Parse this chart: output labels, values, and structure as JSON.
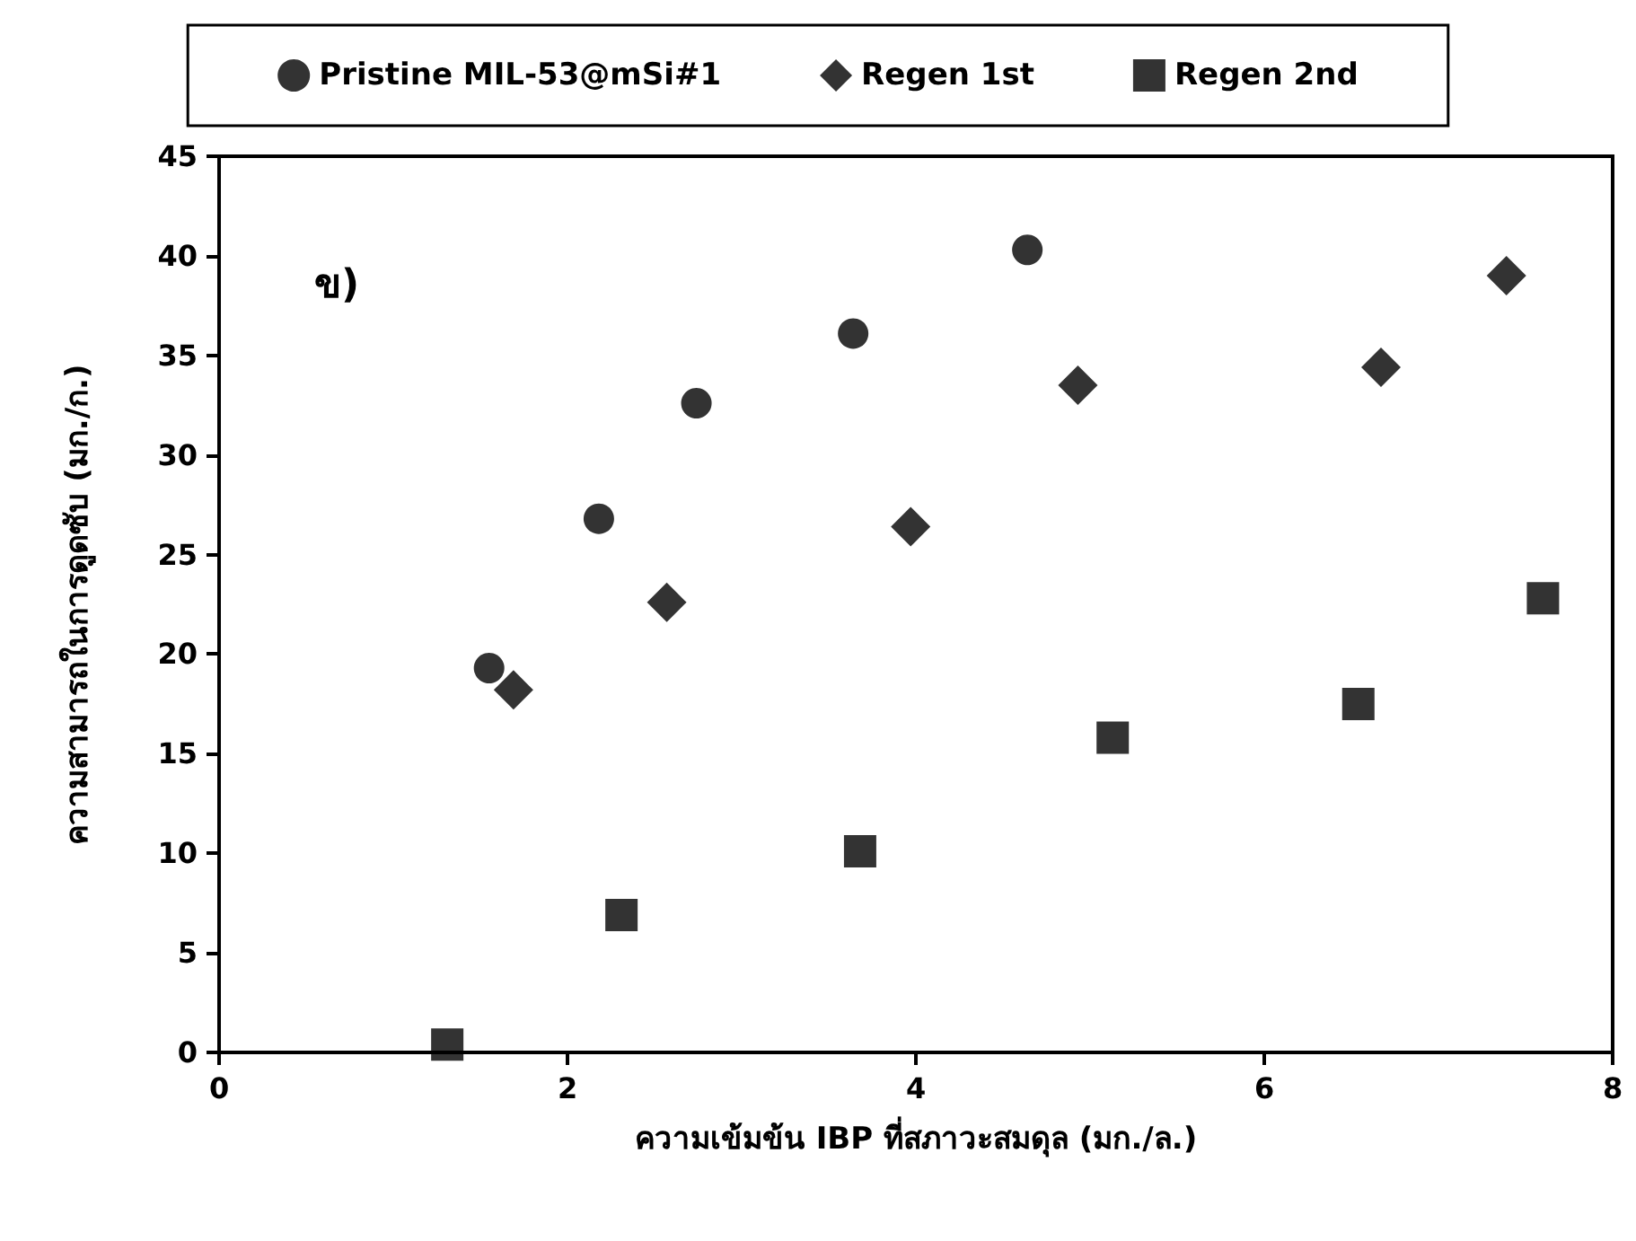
{
  "chart_data": {
    "type": "scatter",
    "xlabel": "ความเข้มข้น IBP ที่สภาวะสมดุล (มก./ล.)",
    "ylabel": "ความสามารถในการดูดซับ (มก./ก.)",
    "annotations": [
      "ข)"
    ],
    "xlim": [
      0,
      8
    ],
    "xticks": [
      0,
      2,
      4,
      6,
      8
    ],
    "ylim": [
      0,
      45
    ],
    "yticks": [
      0,
      5,
      10,
      15,
      20,
      25,
      30,
      35,
      40,
      45
    ],
    "grid": false,
    "legend": "top",
    "series": [
      {
        "name": "Pristine MIL-53@mSi#1",
        "color": "#000000",
        "marker": "circle",
        "x": [
          1.55,
          2.18,
          2.74,
          3.64,
          4.64
        ],
        "values": [
          19.3,
          26.8,
          32.6,
          36.1,
          40.3
        ]
      },
      {
        "name": "Regen 1st",
        "color": "#000000",
        "marker": "diamond",
        "x": [
          1.69,
          2.57,
          3.97,
          4.93,
          6.67,
          7.39
        ],
        "values": [
          18.2,
          22.6,
          26.4,
          33.5,
          34.4,
          39.0
        ]
      },
      {
        "name": "Regen 2nd",
        "color": "#000000",
        "marker": "square",
        "x": [
          1.31,
          2.31,
          3.68,
          5.13,
          6.54,
          7.6
        ],
        "values": [
          0.4,
          6.9,
          10.1,
          15.8,
          17.5,
          22.8
        ]
      }
    ]
  }
}
